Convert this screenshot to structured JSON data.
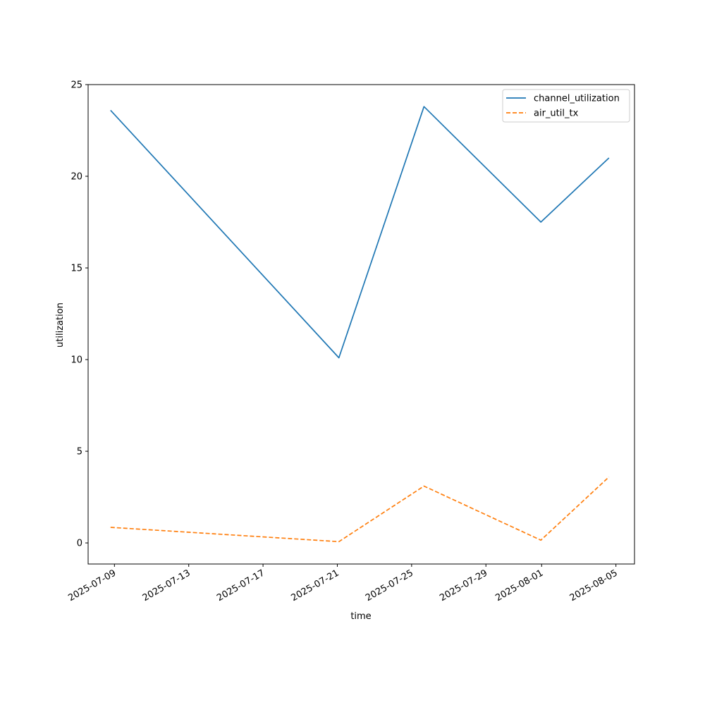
{
  "chart_data": {
    "type": "line",
    "xlabel": "time",
    "ylabel": "utilization",
    "x_type": "date",
    "xlim": [
      "2025-07-07T14:00",
      "2025-08-06T00:00"
    ],
    "ylim": [
      -1.15,
      25.0
    ],
    "y_ticks": [
      0,
      5,
      10,
      15,
      20,
      25
    ],
    "x_ticks": [
      "2025-07-09",
      "2025-07-13",
      "2025-07-17",
      "2025-07-21",
      "2025-07-25",
      "2025-07-29",
      "2025-08-01",
      "2025-08-05"
    ],
    "grid": false,
    "legend_position": "top-right",
    "series": [
      {
        "name": "channel_utilization",
        "color": "#1f77b4",
        "line_style": "solid",
        "points": [
          {
            "x": "2025-07-08T19:00",
            "y": 23.6
          },
          {
            "x": "2025-07-21T02:00",
            "y": 10.1
          },
          {
            "x": "2025-07-25T16:00",
            "y": 23.8
          },
          {
            "x": "2025-07-31T23:00",
            "y": 17.5
          },
          {
            "x": "2025-08-04T15:00",
            "y": 21.0
          }
        ]
      },
      {
        "name": "air_util_tx",
        "color": "#ff7f0e",
        "line_style": "dashed",
        "points": [
          {
            "x": "2025-07-08T19:00",
            "y": 0.85
          },
          {
            "x": "2025-07-21T02:00",
            "y": 0.07
          },
          {
            "x": "2025-07-25T16:00",
            "y": 3.1
          },
          {
            "x": "2025-07-31T23:00",
            "y": 0.15
          },
          {
            "x": "2025-08-04T15:00",
            "y": 3.6
          }
        ]
      }
    ]
  }
}
